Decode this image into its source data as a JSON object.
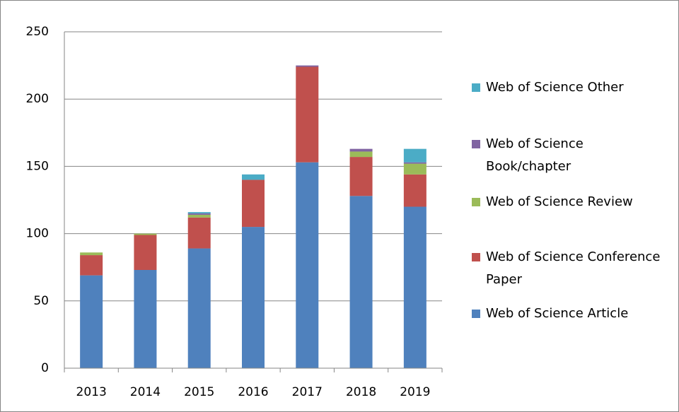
{
  "chart_data": {
    "type": "bar",
    "stacked": true,
    "categories": [
      "2013",
      "2014",
      "2015",
      "2016",
      "2017",
      "2018",
      "2019"
    ],
    "series": [
      {
        "name": "Web of Science Article",
        "color": "#4f81bd",
        "values": [
          69,
          73,
          89,
          105,
          153,
          128,
          120
        ]
      },
      {
        "name": "Web of Science Conference Paper",
        "color": "#c0504d",
        "values": [
          15,
          26,
          23,
          35,
          71,
          29,
          24
        ]
      },
      {
        "name": "Web of Science Review",
        "color": "#9bbb59",
        "values": [
          2,
          1,
          2,
          0,
          0,
          4,
          8
        ]
      },
      {
        "name": "Web of Science Book/chapter",
        "color": "#8064a2",
        "values": [
          0,
          0,
          1,
          0,
          1,
          2,
          1
        ]
      },
      {
        "name": "Web of Science Other",
        "color": "#4bacc6",
        "values": [
          0,
          0,
          1,
          4,
          0,
          0,
          10
        ]
      }
    ],
    "ylim": [
      0,
      250
    ],
    "yticks": [
      0,
      50,
      100,
      150,
      200,
      250
    ],
    "grid": true,
    "legend": "right"
  }
}
